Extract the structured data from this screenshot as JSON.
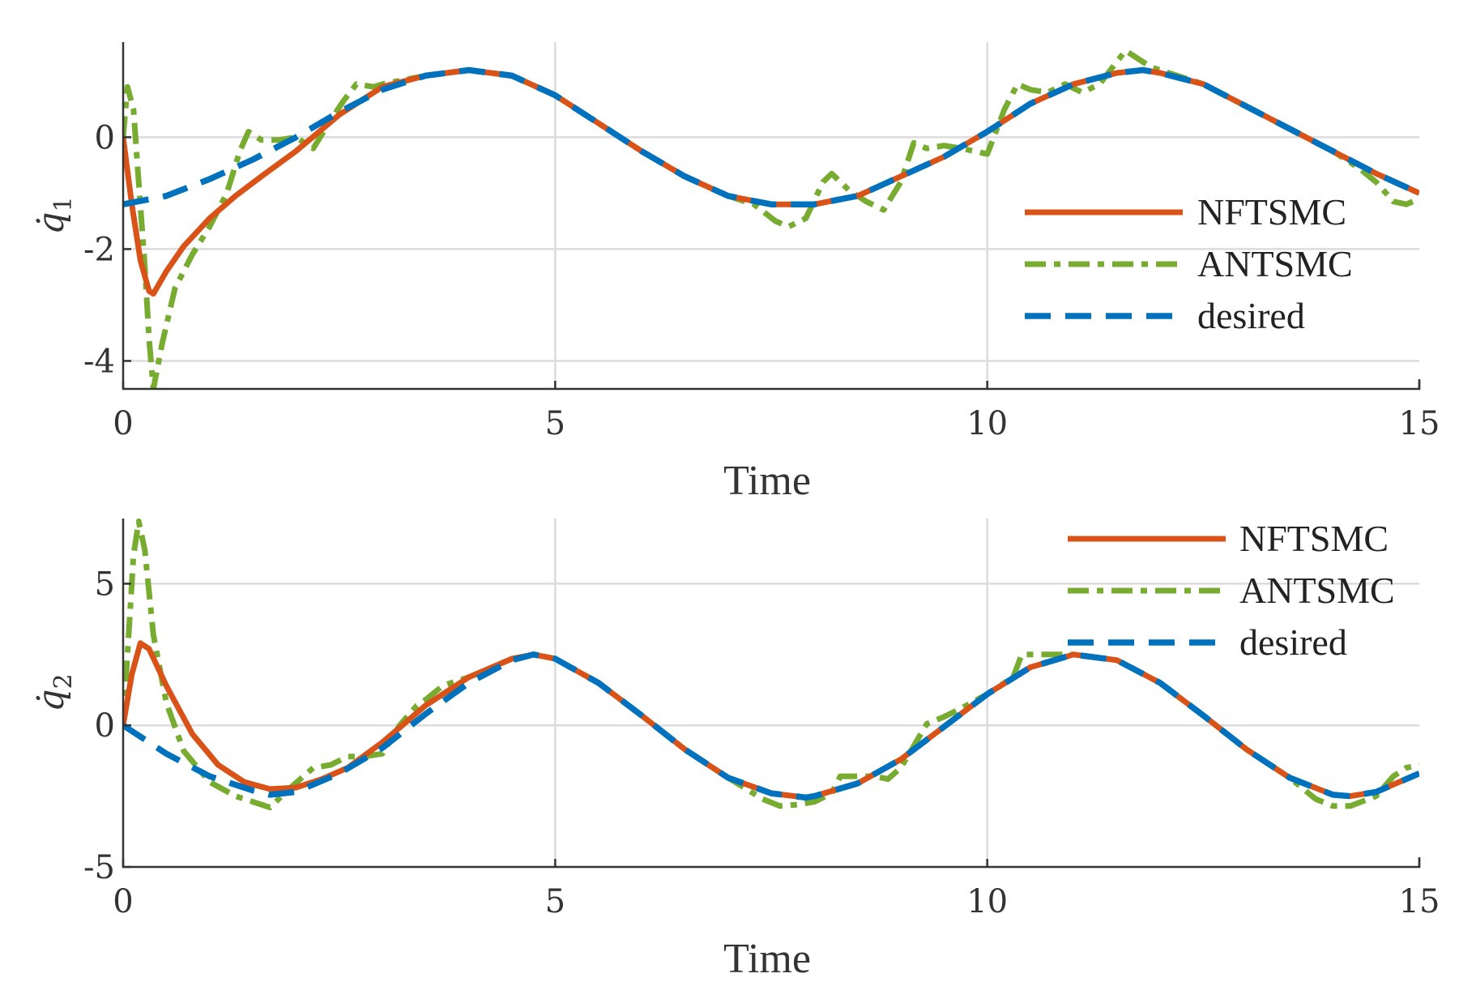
{
  "chart_data": [
    {
      "type": "line",
      "id": "q1",
      "xlabel": "Time",
      "ylabel": "q̇",
      "ylabel_sub": "1",
      "xlim": [
        0,
        15
      ],
      "ylim": [
        -4.5,
        1.7
      ],
      "xticks": [
        0,
        5,
        10,
        15
      ],
      "yticks": [
        -4,
        -2,
        0
      ],
      "ytick_labels": [
        "-4",
        "-2",
        "0"
      ],
      "legend": [
        "NFTSMC",
        "ANTSMC",
        "desired"
      ],
      "legend_position": "right",
      "series": [
        {
          "name": "NFTSMC",
          "color": "#D95319",
          "style": "solid",
          "x": [
            0,
            0.1,
            0.2,
            0.3,
            0.35,
            0.5,
            0.7,
            1.0,
            1.3,
            1.6,
            2.0,
            2.5,
            3.0,
            3.5,
            4.0,
            4.5,
            5.0,
            5.5,
            6.0,
            6.5,
            7.0,
            7.5,
            8.0,
            8.5,
            9.0,
            9.5,
            10.0,
            10.5,
            11.0,
            11.5,
            11.8,
            12.0,
            12.5,
            13.0,
            13.5,
            14.0,
            14.5,
            15.0
          ],
          "y": [
            0,
            -1.2,
            -2.2,
            -2.75,
            -2.8,
            -2.4,
            -1.95,
            -1.45,
            -1.05,
            -0.7,
            -0.25,
            0.4,
            0.9,
            1.1,
            1.2,
            1.1,
            0.75,
            0.25,
            -0.25,
            -0.7,
            -1.05,
            -1.2,
            -1.2,
            -1.05,
            -0.7,
            -0.35,
            0.1,
            0.6,
            0.95,
            1.15,
            1.2,
            1.15,
            0.95,
            0.55,
            0.15,
            -0.25,
            -0.65,
            -1.0
          ]
        },
        {
          "name": "ANTSMC",
          "color": "#77AC30",
          "style": "dashdot",
          "x": [
            0,
            0.05,
            0.12,
            0.18,
            0.25,
            0.3,
            0.35,
            0.45,
            0.6,
            0.8,
            1.0,
            1.2,
            1.35,
            1.45,
            1.6,
            1.8,
            2.0,
            2.2,
            2.4,
            2.55,
            2.7,
            2.9,
            3.0,
            3.5,
            4.0,
            4.5,
            5.0,
            5.5,
            6.0,
            6.5,
            7.0,
            7.3,
            7.55,
            7.7,
            7.9,
            8.1,
            8.2,
            8.4,
            8.6,
            8.8,
            9.0,
            9.15,
            9.3,
            9.5,
            9.7,
            10.0,
            10.2,
            10.35,
            10.5,
            10.7,
            10.9,
            11.1,
            11.3,
            11.5,
            11.6,
            11.7,
            11.9,
            12.0,
            12.5,
            13.0,
            13.5,
            14.0,
            14.3,
            14.5,
            14.7,
            14.85,
            15.0
          ],
          "y": [
            0,
            0.9,
            0.5,
            -0.8,
            -2.3,
            -3.6,
            -4.5,
            -3.7,
            -2.7,
            -2.1,
            -1.6,
            -1.0,
            -0.25,
            0.1,
            -0.05,
            -0.05,
            0.0,
            -0.2,
            0.3,
            0.65,
            0.95,
            0.9,
            0.95,
            1.1,
            1.2,
            1.1,
            0.75,
            0.25,
            -0.25,
            -0.7,
            -1.05,
            -1.2,
            -1.5,
            -1.6,
            -1.45,
            -0.8,
            -0.65,
            -0.95,
            -1.15,
            -1.3,
            -0.8,
            -0.1,
            -0.2,
            -0.15,
            -0.2,
            -0.3,
            0.5,
            0.95,
            0.85,
            0.8,
            0.95,
            0.8,
            0.95,
            1.35,
            1.55,
            1.45,
            1.25,
            1.2,
            0.95,
            0.55,
            0.15,
            -0.25,
            -0.55,
            -0.8,
            -1.15,
            -1.2,
            -1.1
          ]
        },
        {
          "name": "desired",
          "color": "#0072BD",
          "style": "dashed",
          "x": [
            0,
            0.5,
            1.0,
            1.5,
            2.0,
            2.5,
            3.0,
            3.5,
            4.0,
            4.5,
            5.0,
            5.5,
            6.0,
            6.5,
            7.0,
            7.5,
            8.0,
            8.5,
            9.0,
            9.5,
            10.0,
            10.5,
            11.0,
            11.5,
            11.8,
            12.0,
            12.5,
            13.0,
            13.5,
            14.0,
            14.5,
            15.0
          ],
          "y": [
            -1.2,
            -1.05,
            -0.75,
            -0.4,
            0.0,
            0.45,
            0.85,
            1.1,
            1.2,
            1.1,
            0.75,
            0.25,
            -0.25,
            -0.7,
            -1.05,
            -1.2,
            -1.2,
            -1.05,
            -0.7,
            -0.35,
            0.1,
            0.6,
            0.95,
            1.15,
            1.2,
            1.15,
            0.95,
            0.55,
            0.15,
            -0.25,
            -0.65,
            -1.0
          ]
        }
      ]
    },
    {
      "type": "line",
      "id": "q2",
      "xlabel": "Time",
      "ylabel": "q̇",
      "ylabel_sub": "2",
      "xlim": [
        0,
        15
      ],
      "ylim": [
        -5,
        7.3
      ],
      "xticks": [
        0,
        5,
        10,
        15
      ],
      "yticks": [
        -5,
        0,
        5
      ],
      "ytick_labels": [
        "-5",
        "0",
        "5"
      ],
      "legend": [
        "NFTSMC",
        "ANTSMC",
        "desired"
      ],
      "legend_position": "top-right",
      "series": [
        {
          "name": "NFTSMC",
          "color": "#D95319",
          "style": "solid",
          "x": [
            0,
            0.1,
            0.2,
            0.3,
            0.5,
            0.8,
            1.1,
            1.4,
            1.7,
            2.0,
            2.3,
            2.6,
            3.0,
            3.5,
            4.0,
            4.5,
            4.75,
            5.0,
            5.5,
            6.0,
            6.5,
            7.0,
            7.5,
            7.9,
            8.0,
            8.5,
            9.0,
            9.5,
            10.0,
            10.5,
            11.0,
            11.5,
            12.0,
            12.5,
            13.0,
            13.5,
            14.0,
            14.2,
            14.5,
            15.0
          ],
          "y": [
            0,
            1.8,
            2.9,
            2.7,
            1.4,
            -0.3,
            -1.4,
            -2.0,
            -2.25,
            -2.2,
            -1.9,
            -1.5,
            -0.6,
            0.7,
            1.7,
            2.35,
            2.5,
            2.35,
            1.5,
            0.35,
            -0.85,
            -1.85,
            -2.4,
            -2.55,
            -2.5,
            -2.05,
            -1.2,
            -0.05,
            1.1,
            2.05,
            2.5,
            2.3,
            1.5,
            0.35,
            -0.85,
            -1.85,
            -2.45,
            -2.5,
            -2.35,
            -1.7
          ]
        },
        {
          "name": "ANTSMC",
          "color": "#77AC30",
          "style": "dashdot",
          "x": [
            0,
            0.06,
            0.12,
            0.18,
            0.25,
            0.35,
            0.5,
            0.7,
            1.0,
            1.3,
            1.6,
            1.7,
            1.9,
            2.2,
            2.4,
            2.6,
            2.8,
            3.0,
            3.2,
            3.4,
            3.5,
            3.7,
            4.0,
            4.5,
            4.75,
            5.0,
            5.5,
            6.0,
            6.5,
            7.0,
            7.4,
            7.6,
            7.8,
            8.0,
            8.2,
            8.3,
            8.5,
            8.7,
            8.85,
            9.0,
            9.3,
            9.5,
            9.7,
            10.0,
            10.3,
            10.4,
            10.6,
            10.9,
            11.0,
            11.5,
            12.0,
            12.5,
            13.0,
            13.5,
            13.8,
            14.0,
            14.2,
            14.5,
            14.7,
            14.85,
            15.0
          ],
          "y": [
            0,
            3.0,
            6.0,
            7.2,
            6.2,
            3.2,
            0.8,
            -0.9,
            -2.0,
            -2.5,
            -2.8,
            -2.9,
            -2.3,
            -1.5,
            -1.4,
            -1.1,
            -1.1,
            -1.0,
            0.0,
            0.7,
            0.9,
            1.4,
            1.7,
            2.35,
            2.5,
            2.35,
            1.5,
            0.35,
            -0.85,
            -1.85,
            -2.6,
            -2.85,
            -2.8,
            -2.7,
            -2.4,
            -1.8,
            -1.8,
            -1.8,
            -1.9,
            -1.5,
            0.05,
            0.3,
            0.6,
            1.1,
            1.7,
            2.5,
            2.5,
            2.5,
            2.5,
            2.3,
            1.5,
            0.35,
            -0.85,
            -1.85,
            -2.6,
            -2.85,
            -2.85,
            -2.5,
            -1.8,
            -1.5,
            -1.4
          ]
        },
        {
          "name": "desired",
          "color": "#0072BD",
          "style": "dashed",
          "x": [
            0,
            0.5,
            1.0,
            1.5,
            1.7,
            2.0,
            2.5,
            3.0,
            3.5,
            4.0,
            4.5,
            4.75,
            5.0,
            5.5,
            6.0,
            6.5,
            7.0,
            7.5,
            7.9,
            8.0,
            8.5,
            9.0,
            9.5,
            10.0,
            10.5,
            11.0,
            11.5,
            12.0,
            12.5,
            13.0,
            13.5,
            14.0,
            14.2,
            14.5,
            15.0
          ],
          "y": [
            0,
            -1.0,
            -1.8,
            -2.3,
            -2.45,
            -2.35,
            -1.7,
            -0.8,
            0.4,
            1.5,
            2.3,
            2.5,
            2.35,
            1.5,
            0.35,
            -0.85,
            -1.85,
            -2.4,
            -2.55,
            -2.5,
            -2.05,
            -1.2,
            -0.05,
            1.1,
            2.05,
            2.5,
            2.3,
            1.5,
            0.35,
            -0.85,
            -1.85,
            -2.45,
            -2.5,
            -2.35,
            -1.7
          ]
        }
      ]
    }
  ]
}
